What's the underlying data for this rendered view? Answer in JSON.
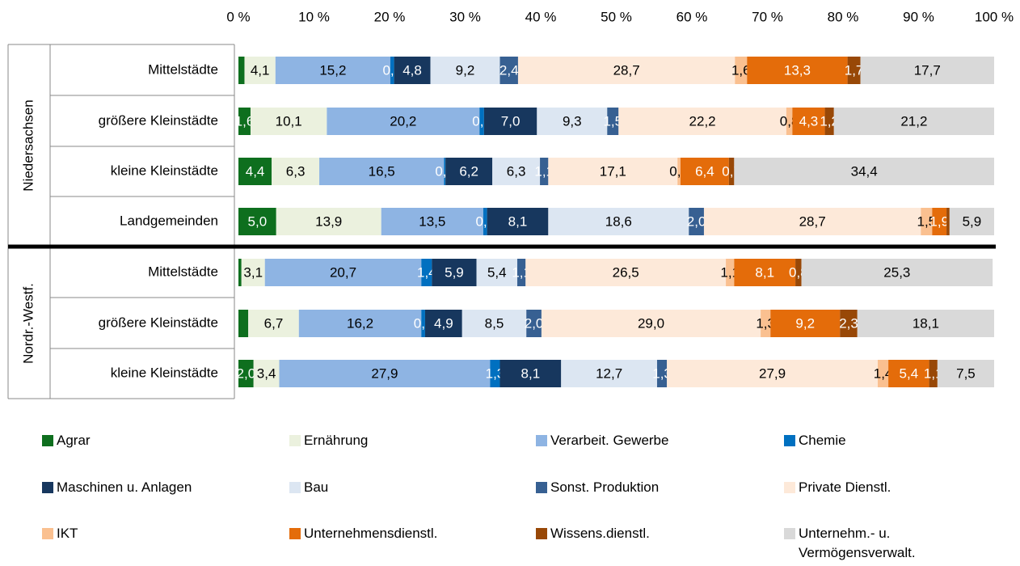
{
  "chart_data": {
    "type": "stacked-barh",
    "groups": [
      "Niedersachsen",
      "Nordr.-Westf."
    ],
    "categories": [
      "Mittelstädte",
      "größere Kleinstädte",
      "kleine Kleinstädte",
      "Landgemeinden",
      "Mittelstädte",
      "größere Kleinstädte",
      "kleine Kleinstädte"
    ],
    "xlim": [
      0,
      100
    ],
    "xticks": [
      {
        "value": 0,
        "label": "0 %"
      },
      {
        "value": 10,
        "label": "10 %"
      },
      {
        "value": 20,
        "label": "20 %"
      },
      {
        "value": 30,
        "label": "30 %"
      },
      {
        "value": 40,
        "label": "40 %"
      },
      {
        "value": 50,
        "label": "50 %"
      },
      {
        "value": 60,
        "label": "60 %"
      },
      {
        "value": 70,
        "label": "70 %"
      },
      {
        "value": 80,
        "label": "80 %"
      },
      {
        "value": 90,
        "label": "90 %"
      },
      {
        "value": 100,
        "label": "100 %"
      }
    ],
    "series": [
      {
        "name": "Agrar",
        "color": "#0e6f1e",
        "values": [
          0.8,
          1.6,
          4.4,
          5.0,
          0.4,
          1.3,
          2.0
        ],
        "value_labels": [
          null,
          "1,6",
          "4,4",
          "5,0",
          null,
          null,
          "2,0"
        ]
      },
      {
        "name": "Ernährung",
        "color": "#ebf1de",
        "values": [
          4.1,
          10.1,
          6.3,
          13.9,
          3.1,
          6.7,
          3.4
        ],
        "value_labels": [
          "4,1",
          "10,1",
          "6,3",
          "13,9",
          "3,1",
          "6,7",
          "3,4"
        ]
      },
      {
        "name": "Verarbeit. Gewerbe",
        "color": "#8eb4e3",
        "values": [
          15.2,
          20.2,
          16.5,
          13.5,
          20.7,
          16.2,
          27.9
        ],
        "value_labels": [
          "15,2",
          "20,2",
          "16,5",
          "13,5",
          "20,7",
          "16,2",
          "27,9"
        ]
      },
      {
        "name": "Chemie",
        "color": "#0070c0",
        "values": [
          0.5,
          0.6,
          0.2,
          0.5,
          1.4,
          0.5,
          1.3
        ],
        "value_labels": [
          "0,5",
          "0,6",
          "0,2",
          "0,5",
          "1,4",
          "0,5",
          "1,3"
        ]
      },
      {
        "name": "Maschinen u. Anlagen",
        "color": "#17375e",
        "values": [
          4.8,
          7.0,
          6.2,
          8.1,
          5.9,
          4.9,
          8.1
        ],
        "value_labels": [
          "4,8",
          "7,0",
          "6,2",
          "8,1",
          "5,9",
          "4,9",
          "8,1"
        ]
      },
      {
        "name": "Bau",
        "color": "#dce6f2",
        "values": [
          9.2,
          9.3,
          6.3,
          18.6,
          5.4,
          8.5,
          12.7
        ],
        "value_labels": [
          "9,2",
          "9,3",
          "6,3",
          "18,6",
          "5,4",
          "8,5",
          "12,7"
        ]
      },
      {
        "name": "Sonst. Produktion",
        "color": "#376092",
        "values": [
          2.4,
          1.5,
          1.1,
          2.0,
          1.1,
          2.0,
          1.3
        ],
        "value_labels": [
          "2,4",
          "1,5",
          "1,1",
          "2,0",
          "1,1",
          "2,0",
          "1,3"
        ]
      },
      {
        "name": "Private Dienstl.",
        "color": "#fde9d9",
        "values": [
          28.7,
          22.2,
          17.1,
          28.7,
          26.5,
          29.0,
          27.9
        ],
        "value_labels": [
          "28,7",
          "22,2",
          "17,1",
          "28,7",
          "26,5",
          "29,0",
          "27,9"
        ]
      },
      {
        "name": "IKT",
        "color": "#fac090",
        "values": [
          1.6,
          0.8,
          0.4,
          1.5,
          1.1,
          1.3,
          1.4
        ],
        "value_labels": [
          "1,6",
          "0,8",
          "0,4",
          "1,5",
          "1,1",
          "1,3",
          "1,4"
        ]
      },
      {
        "name": "Unternehmensdienstl.",
        "color": "#e46c0a",
        "values": [
          13.3,
          4.3,
          6.4,
          1.9,
          8.1,
          9.2,
          5.4
        ],
        "value_labels": [
          "13,3",
          "4,3",
          "6,4",
          "1,9",
          "8,1",
          "9,2",
          "5,4"
        ]
      },
      {
        "name": "Wissens.dienstl.",
        "color": "#984807",
        "values": [
          1.7,
          1.2,
          0.7,
          0.4,
          0.8,
          2.3,
          1.1
        ],
        "value_labels": [
          "1,7",
          "1,2",
          "0,7",
          null,
          "0,8",
          "2,3",
          "1,1"
        ]
      },
      {
        "name": "Unternehm.- u. Vermögensverwalt.",
        "color": "#d9d9d9",
        "values": [
          17.7,
          21.2,
          34.4,
          5.9,
          25.3,
          18.1,
          7.5
        ],
        "value_labels": [
          "17,7",
          "21,2",
          "34,4",
          "5,9",
          "25,3",
          "18,1",
          "7,5"
        ]
      }
    ]
  }
}
